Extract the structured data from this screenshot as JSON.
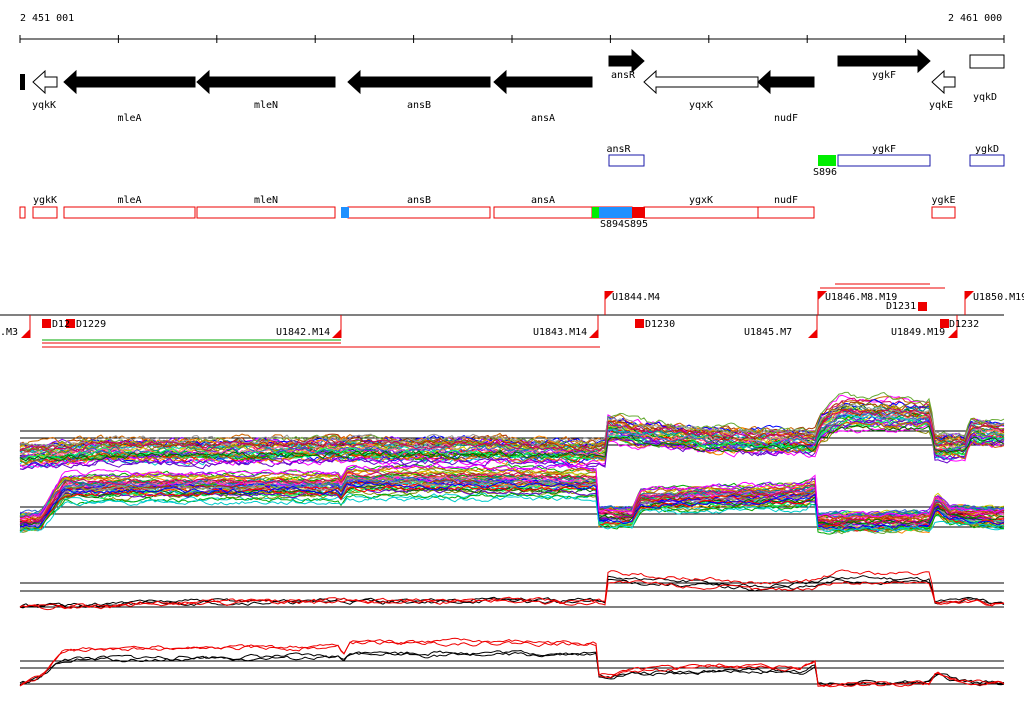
{
  "coordinates": {
    "start": "2 451 001",
    "end": "2 461 000"
  },
  "genes": [
    {
      "name": "yqkK",
      "strand": "-",
      "fill": "#ffffff",
      "x1": 33,
      "x2": 57,
      "row": 0
    },
    {
      "name": "mleA",
      "strand": "-",
      "fill": "#000000",
      "x1": 64,
      "x2": 195,
      "row": 1
    },
    {
      "name": "mleN",
      "strand": "-",
      "fill": "#000000",
      "x1": 197,
      "x2": 335,
      "row": 0
    },
    {
      "name": "ansB",
      "strand": "-",
      "fill": "#000000",
      "x1": 348,
      "x2": 490,
      "row": 0
    },
    {
      "name": "ansA",
      "strand": "-",
      "fill": "#000000",
      "x1": 494,
      "x2": 592,
      "row": 1
    },
    {
      "name": "ansR",
      "strand": "+",
      "fill": "#000000",
      "x1": 609,
      "x2": 644,
      "row": -1
    },
    {
      "name": "yqxK",
      "strand": "-",
      "fill": "#ffffff",
      "x1": 644,
      "x2": 758,
      "row": 0
    },
    {
      "name": "nudF",
      "strand": "-",
      "fill": "#000000",
      "x1": 758,
      "x2": 814,
      "row": 1
    },
    {
      "name": "ygkF",
      "strand": "+",
      "fill": "#000000",
      "x1": 838,
      "x2": 930,
      "row": -1
    },
    {
      "name": "yqkE",
      "strand": "-",
      "fill": "#ffffff",
      "x1": 932,
      "x2": 955,
      "row": 0
    },
    {
      "name": "yqkD",
      "strand": "+",
      "fill": "#ffffff",
      "x1": 970,
      "x2": 1004,
      "row": 0
    }
  ],
  "plus_track_labels": [
    {
      "name": "ansR",
      "x1": 609,
      "x2": 644
    },
    {
      "name": "ygkF",
      "x1": 838,
      "x2": 930
    },
    {
      "name": "ygkD",
      "x1": 970,
      "x2": 1004
    }
  ],
  "minus_track_labels": [
    {
      "name": "ygkK",
      "x1": 33,
      "x2": 57
    },
    {
      "name": "mleA",
      "x1": 64,
      "x2": 195
    },
    {
      "name": "mleN",
      "x1": 197,
      "x2": 335
    },
    {
      "name": "ansB",
      "x1": 348,
      "x2": 490
    },
    {
      "name": "ansA",
      "x1": 494,
      "x2": 592
    },
    {
      "name": "ygxK",
      "x1": 644,
      "x2": 758
    },
    {
      "name": "nudF",
      "x1": 758,
      "x2": 814
    },
    {
      "name": "ygkE",
      "x1": 932,
      "x2": 955
    }
  ],
  "segments": [
    {
      "name": "S896",
      "color": "#00ee00"
    },
    {
      "name": "S894",
      "color": "#1e90ff"
    },
    {
      "name": "S895",
      "color": "#ee0000"
    }
  ],
  "upstream_labels_top": [
    "U1844.M4",
    "U1846.M8.M19",
    "U1850.M19"
  ],
  "upstream_labels_bottom": [
    ".M3",
    "U1842.M14",
    "U1843.M14",
    "U1845.M7",
    "U1849.M19"
  ],
  "downstream_labels": [
    "D12",
    "D1229",
    "D1230",
    "D1231",
    "D1232"
  ],
  "track_colors": {
    "reverse_highlight": "#ee0000",
    "profile": "#000000",
    "box_outline": "#ee0000",
    "plus_box": "#1a1aa8"
  },
  "profile_levels": {
    "panel1": [
      [
        20,
        -0.15
      ],
      [
        60,
        -0.1
      ],
      [
        100,
        0.05
      ],
      [
        180,
        0.0
      ],
      [
        260,
        0.05
      ],
      [
        340,
        0.1
      ],
      [
        420,
        0.05
      ],
      [
        500,
        0.1
      ],
      [
        560,
        0.0
      ],
      [
        607,
        -0.05
      ],
      [
        608,
        1.0
      ],
      [
        640,
        0.8
      ],
      [
        700,
        0.55
      ],
      [
        760,
        0.45
      ],
      [
        815,
        0.45
      ],
      [
        820,
        1.1
      ],
      [
        840,
        1.7
      ],
      [
        930,
        1.6
      ],
      [
        935,
        0.2
      ],
      [
        965,
        0.2
      ],
      [
        970,
        0.9
      ],
      [
        1004,
        0.8
      ]
    ],
    "panel2": [
      [
        20,
        -0.2
      ],
      [
        40,
        -0.1
      ],
      [
        64,
        2.0
      ],
      [
        200,
        2.1
      ],
      [
        340,
        2.1
      ],
      [
        342,
        1.6
      ],
      [
        345,
        2.4
      ],
      [
        500,
        2.4
      ],
      [
        596,
        2.3
      ],
      [
        598,
        0.2
      ],
      [
        632,
        0.2
      ],
      [
        640,
        1.2
      ],
      [
        720,
        1.4
      ],
      [
        800,
        1.5
      ],
      [
        815,
        1.8
      ],
      [
        818,
        -0.2
      ],
      [
        930,
        -0.1
      ],
      [
        936,
        1.0
      ],
      [
        950,
        0.3
      ],
      [
        1004,
        0.1
      ]
    ],
    "panel3": [
      [
        20,
        0.0
      ],
      [
        80,
        0.05
      ],
      [
        150,
        0.3
      ],
      [
        230,
        0.4
      ],
      [
        300,
        0.35
      ],
      [
        340,
        0.45
      ],
      [
        420,
        0.4
      ],
      [
        500,
        0.55
      ],
      [
        560,
        0.35
      ],
      [
        605,
        0.4
      ],
      [
        608,
        2.3
      ],
      [
        650,
        2.0
      ],
      [
        700,
        1.8
      ],
      [
        760,
        1.5
      ],
      [
        815,
        1.7
      ],
      [
        838,
        2.2
      ],
      [
        930,
        2.1
      ],
      [
        935,
        0.35
      ],
      [
        970,
        0.5
      ],
      [
        1004,
        0.2
      ]
    ],
    "panel4": [
      [
        20,
        0.0
      ],
      [
        40,
        0.5
      ],
      [
        64,
        2.2
      ],
      [
        200,
        2.3
      ],
      [
        340,
        2.4
      ],
      [
        342,
        1.8
      ],
      [
        350,
        2.7
      ],
      [
        500,
        2.7
      ],
      [
        596,
        2.6
      ],
      [
        598,
        0.6
      ],
      [
        640,
        0.9
      ],
      [
        720,
        1.2
      ],
      [
        800,
        1.1
      ],
      [
        815,
        1.5
      ],
      [
        818,
        0.0
      ],
      [
        930,
        0.1
      ],
      [
        936,
        0.9
      ],
      [
        960,
        0.2
      ],
      [
        1004,
        0.1
      ]
    ]
  }
}
